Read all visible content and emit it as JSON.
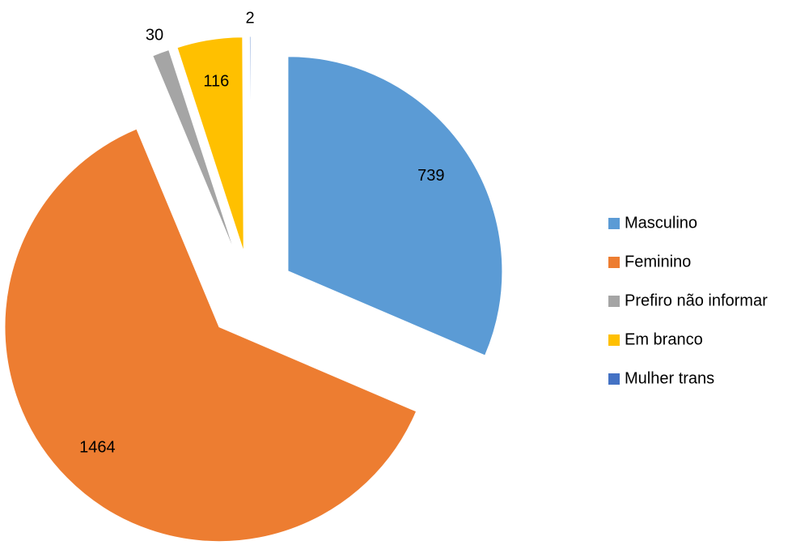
{
  "chart_data": {
    "type": "pie",
    "categories": [
      "Masculino",
      "Feminino",
      "Prefiro não informar",
      "Em branco",
      "Mulher trans"
    ],
    "values": [
      739,
      1464,
      30,
      116,
      2
    ],
    "colors": [
      "#5b9bd5",
      "#ed7d31",
      "#a5a5a5",
      "#ffc000",
      "#4472c4"
    ],
    "legend": "right"
  }
}
